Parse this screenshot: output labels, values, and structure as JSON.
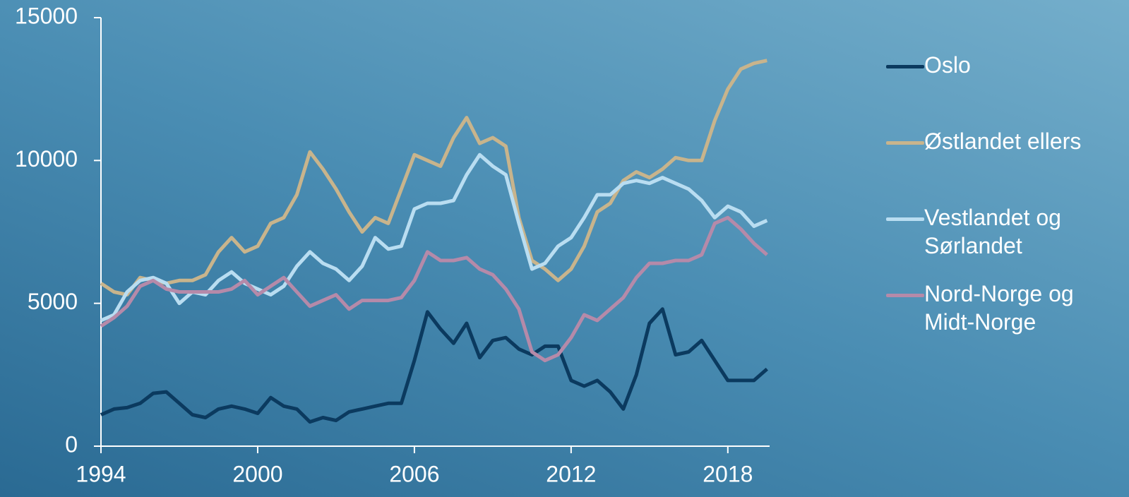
{
  "chart_data": {
    "type": "line",
    "x": [
      1994,
      1994.5,
      1995,
      1995.5,
      1996,
      1996.5,
      1997,
      1997.5,
      1998,
      1998.5,
      1999,
      1999.5,
      2000,
      2000.5,
      2001,
      2001.5,
      2002,
      2002.5,
      2003,
      2003.5,
      2004,
      2004.5,
      2005,
      2005.5,
      2006,
      2006.5,
      2007,
      2007.5,
      2008,
      2008.5,
      2009,
      2009.5,
      2010,
      2010.5,
      2011,
      2011.5,
      2012,
      2012.5,
      2013,
      2013.5,
      2014,
      2014.5,
      2015,
      2015.5,
      2016,
      2016.5,
      2017,
      2017.5,
      2018,
      2018.5,
      2019,
      2019.5
    ],
    "series": [
      {
        "name": "Oslo",
        "color": "#0b3a5f",
        "values": [
          1100,
          1300,
          1350,
          1500,
          1850,
          1900,
          1500,
          1100,
          1000,
          1300,
          1400,
          1300,
          1150,
          1700,
          1400,
          1300,
          850,
          1000,
          900,
          1200,
          1300,
          1400,
          1500,
          1500,
          3000,
          4700,
          4100,
          3600,
          4300,
          3100,
          3700,
          3800,
          3400,
          3200,
          3500,
          3500,
          2300,
          2100,
          2300,
          1900,
          1300,
          2500,
          4300,
          4800,
          3200,
          3300,
          3700,
          3000,
          2300,
          2300,
          2300,
          2700
        ]
      },
      {
        "name": "Østlandet ellers",
        "color": "#c8b48c",
        "values": [
          5700,
          5400,
          5300,
          5900,
          5800,
          5700,
          5800,
          5800,
          6000,
          6800,
          7300,
          6800,
          7000,
          7800,
          8000,
          8800,
          10300,
          9700,
          9000,
          8200,
          7500,
          8000,
          7800,
          9000,
          10200,
          10000,
          9800,
          10800,
          11500,
          10600,
          10800,
          10500,
          8000,
          6500,
          6200,
          5800,
          6200,
          7000,
          8200,
          8500,
          9300,
          9600,
          9400,
          9700,
          10100,
          10000,
          10000,
          11400,
          12500,
          13200,
          13400,
          13500
        ]
      },
      {
        "name": "Vestlandet og Sørlandet",
        "color": "#b9ddf1",
        "values": [
          4400,
          4600,
          5400,
          5800,
          5900,
          5700,
          5000,
          5400,
          5300,
          5800,
          6100,
          5700,
          5500,
          5300,
          5600,
          6300,
          6800,
          6400,
          6200,
          5800,
          6300,
          7300,
          6900,
          7000,
          8300,
          8500,
          8500,
          8600,
          9500,
          10200,
          9800,
          9500,
          7800,
          6200,
          6400,
          7000,
          7300,
          8000,
          8800,
          8800,
          9200,
          9300,
          9200,
          9400,
          9200,
          9000,
          8600,
          8000,
          8400,
          8200,
          7700,
          7900
        ]
      },
      {
        "name": "Nord-Norge og Midt-Norge",
        "color": "#b58aa9",
        "values": [
          4200,
          4500,
          4900,
          5600,
          5800,
          5500,
          5400,
          5400,
          5400,
          5400,
          5500,
          5800,
          5300,
          5600,
          5900,
          5400,
          4900,
          5100,
          5300,
          4800,
          5100,
          5100,
          5100,
          5200,
          5800,
          6800,
          6500,
          6500,
          6600,
          6200,
          6000,
          5500,
          4800,
          3300,
          3000,
          3200,
          3800,
          4600,
          4400,
          4800,
          5200,
          5900,
          6400,
          6400,
          6500,
          6500,
          6700,
          7800,
          8000,
          7600,
          7100,
          6700
        ]
      }
    ],
    "xlim": [
      1994,
      2019.6
    ],
    "xticks": [
      1994,
      2000,
      2006,
      2012,
      2018
    ],
    "ylim": [
      0,
      15000
    ],
    "yticks": [
      0,
      5000,
      10000,
      15000
    ],
    "legend": "right"
  }
}
